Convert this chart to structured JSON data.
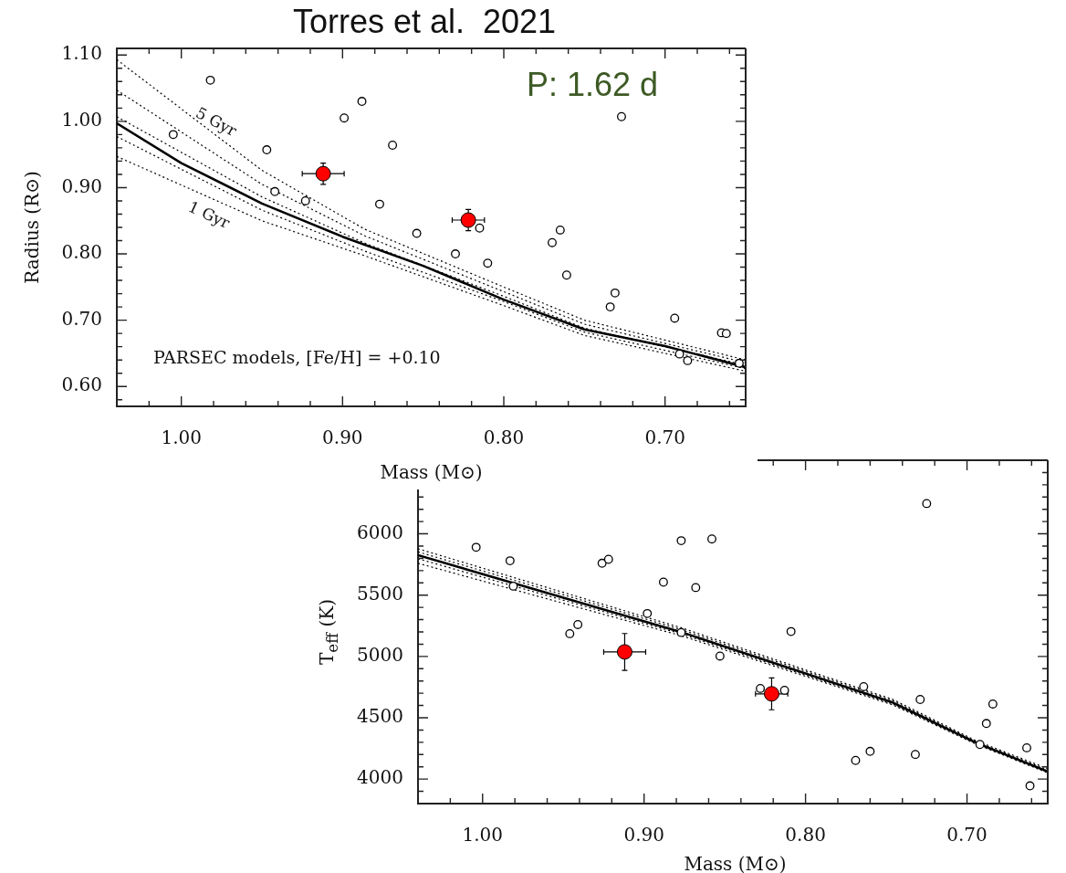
{
  "chart_data": [
    {
      "type": "scatter",
      "title": "Torres et al.  2021",
      "xlabel": "Mass (M⊙)",
      "ylabel": "Radius (R⊙)",
      "xlim": [
        1.04,
        0.65
      ],
      "ylim": [
        0.57,
        1.11
      ],
      "xticks": [
        {
          "value": 1.02,
          "label": null
        },
        {
          "value": 1,
          "label": "1.00"
        },
        {
          "value": 0.98,
          "label": null
        },
        {
          "value": 0.96,
          "label": null
        },
        {
          "value": 0.94,
          "label": null
        },
        {
          "value": 0.92,
          "label": null
        },
        {
          "value": 0.9,
          "label": "0.90"
        },
        {
          "value": 0.88,
          "label": null
        },
        {
          "value": 0.86,
          "label": null
        },
        {
          "value": 0.84,
          "label": null
        },
        {
          "value": 0.82,
          "label": null
        },
        {
          "value": 0.8,
          "label": "0.80"
        },
        {
          "value": 0.78,
          "label": null
        },
        {
          "value": 0.76,
          "label": null
        },
        {
          "value": 0.74,
          "label": null
        },
        {
          "value": 0.72,
          "label": null
        },
        {
          "value": 0.7,
          "label": "0.70"
        },
        {
          "value": 0.68,
          "label": null
        },
        {
          "value": 0.66,
          "label": null
        }
      ],
      "yticks": [
        {
          "value": 0.58,
          "label": null
        },
        {
          "value": 0.6,
          "label": "0.60"
        },
        {
          "value": 0.62,
          "label": null
        },
        {
          "value": 0.64,
          "label": null
        },
        {
          "value": 0.66,
          "label": null
        },
        {
          "value": 0.68,
          "label": null
        },
        {
          "value": 0.7,
          "label": "0.70"
        },
        {
          "value": 0.72,
          "label": null
        },
        {
          "value": 0.74,
          "label": null
        },
        {
          "value": 0.76,
          "label": null
        },
        {
          "value": 0.78,
          "label": null
        },
        {
          "value": 0.8,
          "label": "0.80"
        },
        {
          "value": 0.82,
          "label": null
        },
        {
          "value": 0.84,
          "label": null
        },
        {
          "value": 0.86,
          "label": null
        },
        {
          "value": 0.88,
          "label": null
        },
        {
          "value": 0.9,
          "label": "0.90"
        },
        {
          "value": 0.92,
          "label": null
        },
        {
          "value": 0.94,
          "label": null
        },
        {
          "value": 0.96,
          "label": null
        },
        {
          "value": 0.98,
          "label": null
        },
        {
          "value": 1,
          "label": "1.00"
        },
        {
          "value": 1.02,
          "label": null
        },
        {
          "value": 1.04,
          "label": null
        },
        {
          "value": 1.06,
          "label": null
        },
        {
          "value": 1.08,
          "label": null
        },
        {
          "value": 1.1,
          "label": "1.10"
        }
      ],
      "grid": false,
      "legend": false,
      "marker": "circle",
      "annotations": [
        "5 Gyr",
        "1 Gyr",
        "PARSEC models, [Fe/H] = +0.10",
        "P: 1.62 d"
      ],
      "series": [
        {
          "type": "line",
          "marker": "none",
          "line_style": "solid",
          "color": "#000000",
          "x": [
            1.04,
            1.0,
            0.95,
            0.9,
            0.85,
            0.8,
            0.75,
            0.7,
            0.65
          ],
          "values": [
            0.997,
            0.937,
            0.876,
            0.826,
            0.782,
            0.731,
            0.686,
            0.661,
            0.629
          ]
        },
        {
          "type": "line",
          "marker": "none",
          "line_style": "dotted",
          "color": "#000000",
          "x": [
            1.04,
            0.95,
            0.886,
            0.8,
            0.75,
            0.65
          ],
          "values": [
            1.093,
            0.926,
            0.837,
            0.75,
            0.7,
            0.64
          ]
        },
        {
          "type": "line",
          "marker": "none",
          "line_style": "dotted",
          "color": "#000000",
          "x": [
            1.04,
            0.95,
            0.886,
            0.8,
            0.75,
            0.65
          ],
          "values": [
            1.047,
            0.905,
            0.827,
            0.743,
            0.694,
            0.636
          ]
        },
        {
          "type": "line",
          "marker": "none",
          "line_style": "dotted",
          "color": "#000000",
          "x": [
            1.04,
            0.95,
            0.886,
            0.8,
            0.75,
            0.65
          ],
          "values": [
            1.007,
            0.886,
            0.816,
            0.736,
            0.688,
            0.632
          ]
        },
        {
          "type": "line",
          "marker": "none",
          "line_style": "dotted",
          "color": "#000000",
          "x": [
            1.04,
            0.95,
            0.886,
            0.8,
            0.75,
            0.65
          ],
          "values": [
            0.977,
            0.866,
            0.804,
            0.728,
            0.682,
            0.627
          ]
        },
        {
          "type": "line",
          "marker": "none",
          "line_style": "dotted",
          "color": "#000000",
          "x": [
            1.04,
            0.95,
            0.886,
            0.8,
            0.75,
            0.65
          ],
          "values": [
            0.947,
            0.85,
            0.797,
            0.722,
            0.677,
            0.623
          ]
        },
        {
          "type": "scatter",
          "color": "#000000",
          "x": [
            1.005,
            0.982,
            0.947,
            0.942,
            0.923,
            0.899,
            0.888,
            0.877,
            0.869,
            0.854,
            0.83,
            0.815,
            0.81,
            0.77,
            0.765,
            0.761,
            0.727,
            0.731,
            0.734,
            0.694,
            0.665,
            0.662,
            0.691,
            0.686,
            0.654
          ],
          "values": [
            0.98,
            1.062,
            0.957,
            0.894,
            0.88,
            1.005,
            1.03,
            0.875,
            0.964,
            0.831,
            0.8,
            0.839,
            0.786,
            0.817,
            0.836,
            0.768,
            1.007,
            0.741,
            0.72,
            0.703,
            0.681,
            0.68,
            0.649,
            0.639,
            0.635
          ]
        },
        {
          "type": "scatter",
          "color": "#ff0000",
          "x": [
            0.912,
            0.822
          ],
          "values": [
            0.921,
            0.851
          ],
          "errors": [
            0.016,
            0.016
          ],
          "xerrors": [
            0.013,
            0.01
          ]
        }
      ]
    },
    {
      "type": "scatter",
      "xlabel": "Mass (M⊙)",
      "ylabel": "T$_{eff}$ (K)",
      "xlim": [
        1.04,
        0.65
      ],
      "ylim": [
        3800,
        6600
      ],
      "xticks": [
        {
          "value": 1.02,
          "label": null
        },
        {
          "value": 1,
          "label": "1.00"
        },
        {
          "value": 0.98,
          "label": null
        },
        {
          "value": 0.96,
          "label": null
        },
        {
          "value": 0.94,
          "label": null
        },
        {
          "value": 0.92,
          "label": null
        },
        {
          "value": 0.9,
          "label": "0.90"
        },
        {
          "value": 0.88,
          "label": null
        },
        {
          "value": 0.86,
          "label": null
        },
        {
          "value": 0.84,
          "label": null
        },
        {
          "value": 0.82,
          "label": null
        },
        {
          "value": 0.8,
          "label": "0.80"
        },
        {
          "value": 0.78,
          "label": null
        },
        {
          "value": 0.76,
          "label": null
        },
        {
          "value": 0.74,
          "label": null
        },
        {
          "value": 0.72,
          "label": null
        },
        {
          "value": 0.7,
          "label": "0.70"
        },
        {
          "value": 0.68,
          "label": null
        },
        {
          "value": 0.66,
          "label": null
        }
      ],
      "yticks": [
        {
          "value": 3900,
          "label": null
        },
        4000,
        {
          "value": 4100,
          "label": null
        },
        {
          "value": 4200,
          "label": null
        },
        {
          "value": 4300,
          "label": null
        },
        {
          "value": 4400,
          "label": null
        },
        4500,
        {
          "value": 4600,
          "label": null
        },
        {
          "value": 4700,
          "label": null
        },
        {
          "value": 4800,
          "label": null
        },
        {
          "value": 4900,
          "label": null
        },
        5000,
        {
          "value": 5100,
          "label": null
        },
        {
          "value": 5200,
          "label": null
        },
        {
          "value": 5300,
          "label": null
        },
        {
          "value": 5400,
          "label": null
        },
        5500,
        {
          "value": 5600,
          "label": null
        },
        {
          "value": 5700,
          "label": null
        },
        {
          "value": 5800,
          "label": null
        },
        {
          "value": 5900,
          "label": null
        },
        6000,
        {
          "value": 6100,
          "label": null
        },
        {
          "value": 6200,
          "label": null
        },
        {
          "value": 6300,
          "label": null
        },
        {
          "value": 6400,
          "label": null
        },
        {
          "value": 6500,
          "label": null
        }
      ],
      "grid": false,
      "legend": false,
      "marker": "circle",
      "series": [
        {
          "type": "line",
          "marker": "none",
          "line_style": "solid",
          "color": "#000000",
          "x": [
            1.04,
            0.877,
            0.746,
            0.694,
            0.65
          ],
          "values": [
            5826,
            5199,
            4624,
            4294,
            4062
          ]
        },
        {
          "type": "line",
          "marker": "none",
          "line_style": "dotted",
          "color": "#000000",
          "x": [
            1.04,
            0.877,
            0.746,
            0.694,
            0.65
          ],
          "values": [
            5878,
            5234,
            4650,
            4310,
            4085
          ]
        },
        {
          "type": "line",
          "marker": "none",
          "line_style": "dotted",
          "color": "#000000",
          "x": [
            1.04,
            0.877,
            0.746,
            0.694,
            0.65
          ],
          "values": [
            5853,
            5219,
            4640,
            4302,
            4075
          ]
        },
        {
          "type": "line",
          "marker": "none",
          "line_style": "dotted",
          "color": "#000000",
          "x": [
            1.04,
            0.877,
            0.746,
            0.694,
            0.65
          ],
          "values": [
            5797,
            5184,
            4612,
            4288,
            4055
          ]
        },
        {
          "type": "line",
          "marker": "none",
          "line_style": "dotted",
          "color": "#000000",
          "x": [
            1.04,
            0.877,
            0.746,
            0.694,
            0.65
          ],
          "values": [
            5760,
            5169,
            4605,
            4282,
            4050
          ]
        },
        {
          "type": "scatter",
          "color": "#000000",
          "x": [
            1.004,
            0.983,
            0.981,
            0.946,
            0.941,
            0.926,
            0.922,
            0.898,
            0.888,
            0.877,
            0.877,
            0.858,
            0.868,
            0.853,
            0.809,
            0.828,
            0.813,
            0.764,
            0.769,
            0.76,
            0.732,
            0.729,
            0.725,
            0.692,
            0.688,
            0.684,
            0.663,
            0.661
          ],
          "values": [
            5890,
            5780,
            5573,
            5186,
            5260,
            5760,
            5792,
            5350,
            5606,
            5944,
            5195,
            5958,
            5562,
            5003,
            5203,
            4739,
            4724,
            4754,
            4152,
            4226,
            4201,
            4649,
            6247,
            4282,
            4453,
            4612,
            4255,
            3945
          ]
        },
        {
          "type": "scatter",
          "color": "#ff0000",
          "x": [
            0.912,
            0.821
          ],
          "values": [
            5037,
            4695
          ],
          "errors": [
            150,
            130
          ],
          "xerrors": [
            0.013,
            0.01
          ]
        }
      ]
    }
  ]
}
